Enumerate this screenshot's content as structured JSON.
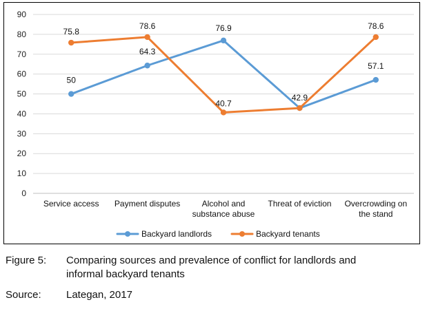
{
  "chart_data": {
    "type": "line",
    "categories": [
      "Service access",
      "Payment disputes",
      "Alcohol and substance abuse",
      "Threat of eviction",
      "Overcrowding on the stand"
    ],
    "category_lines": [
      [
        "Service access"
      ],
      [
        "Payment disputes"
      ],
      [
        "Alcohol and",
        "substance abuse"
      ],
      [
        "Threat of eviction"
      ],
      [
        "Overcrowding on",
        "the stand"
      ]
    ],
    "series": [
      {
        "name": "Backyard landlords",
        "values": [
          50,
          64.3,
          76.9,
          42.9,
          57.1
        ],
        "color": "#5B9BD5",
        "labels": [
          "50",
          "64.3",
          "76.9",
          "",
          "57.1"
        ]
      },
      {
        "name": "Backyard tenants",
        "values": [
          75.8,
          78.6,
          40.7,
          42.9,
          78.6
        ],
        "color": "#ED7D31",
        "labels": [
          "75.8",
          "78.6",
          "40.7",
          "42.9",
          "78.6"
        ]
      }
    ],
    "ylim": [
      0,
      90
    ],
    "yticks": [
      0,
      10,
      20,
      30,
      40,
      50,
      60,
      70,
      80,
      90
    ],
    "grid": true,
    "legend": "bottom",
    "title": "",
    "xlabel": "",
    "ylabel": ""
  },
  "caption": {
    "figure_key": "Figure 5:",
    "figure_text": "Comparing sources and prevalence of conflict for landlords and informal backyard tenants",
    "source_key": "Source:",
    "source_text": "Lategan, 2017"
  }
}
